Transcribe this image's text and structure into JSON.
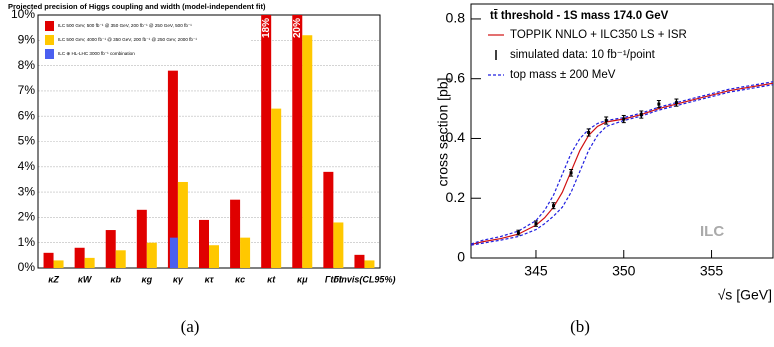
{
  "chart_data": [
    {
      "type": "bar",
      "title": "Projected precision of Higgs coupling and width (model-independent fit)",
      "caption": "(a)",
      "categories": [
        "κZ",
        "κW",
        "κb",
        "κg",
        "κγ",
        "κτ",
        "κc",
        "κt",
        "κμ",
        "Γtot",
        "Γinvis(CL95%)"
      ],
      "series": [
        {
          "name": "ILC 500 GeV,  500 fb⁻¹ @ 350 GeV, 200 fb⁻¹ @ 250 GeV,  500 fb⁻¹",
          "color": "#e00000",
          "values": [
            0.6,
            0.8,
            1.5,
            2.3,
            7.8,
            1.9,
            2.7,
            18,
            20,
            3.8,
            0.52
          ],
          "value_labels": [
            null,
            null,
            null,
            null,
            null,
            null,
            null,
            "18%",
            "20%",
            null,
            null
          ]
        },
        {
          "name": "ILC 500 GeV, 4000 fb⁻¹ @ 350 GeV, 200 fb⁻¹ @ 250 GeV, 2000 fb⁻¹",
          "color": "#ffc800",
          "values": [
            0.3,
            0.4,
            0.7,
            1.0,
            3.4,
            0.9,
            1.2,
            6.3,
            9.2,
            1.8,
            0.3
          ]
        },
        {
          "name": "ILC ⊕ HL-LHC 3000 fb⁻¹ combination",
          "color": "#4a5ff0",
          "values": [
            null,
            null,
            null,
            null,
            1.2,
            null,
            null,
            null,
            null,
            null,
            null
          ]
        }
      ],
      "ylim": [
        0,
        10
      ],
      "yticks": [
        {
          "value": 0,
          "label": "0%"
        },
        {
          "value": 1,
          "label": "1%"
        },
        {
          "value": 2,
          "label": "2%"
        },
        {
          "value": 3,
          "label": "3%"
        },
        {
          "value": 4,
          "label": "4%"
        },
        {
          "value": 5,
          "label": "5%"
        },
        {
          "value": 6,
          "label": "6%"
        },
        {
          "value": 7,
          "label": "7%"
        },
        {
          "value": 8,
          "label": "8%"
        },
        {
          "value": 9,
          "label": "9%"
        },
        {
          "value": 10,
          "label": "10%"
        }
      ],
      "grid": true
    },
    {
      "type": "line",
      "title": "tt̄ threshold - 1S mass 174.0 GeV",
      "caption": "(b)",
      "x_label": "√s [GeV]",
      "y_label": "cross section [pb]",
      "annotation": "ILC",
      "x": [
        341.3,
        342,
        343,
        344,
        345,
        345.5,
        346,
        346.5,
        347,
        347.5,
        348,
        348.5,
        349,
        350,
        351,
        352,
        354,
        356,
        358.5
      ],
      "series": [
        {
          "name": "TOPPIK NNLO + ILC350 LS + ISR",
          "color": "#d01010",
          "style": "solid",
          "values": [
            0.045,
            0.055,
            0.065,
            0.08,
            0.11,
            0.135,
            0.17,
            0.22,
            0.29,
            0.36,
            0.41,
            0.44,
            0.455,
            0.465,
            0.48,
            0.5,
            0.53,
            0.56,
            0.585
          ]
        },
        {
          "name": "top mass ± 200 MeV",
          "color": "#2020e0",
          "style": "dashed",
          "values": [
            0.047,
            0.06,
            0.072,
            0.09,
            0.125,
            0.16,
            0.21,
            0.28,
            0.35,
            0.4,
            0.43,
            0.45,
            0.46,
            0.47,
            0.485,
            0.505,
            0.535,
            0.565,
            0.59
          ],
          "values_other": [
            0.043,
            0.05,
            0.06,
            0.072,
            0.095,
            0.115,
            0.14,
            0.17,
            0.22,
            0.29,
            0.36,
            0.41,
            0.44,
            0.46,
            0.475,
            0.495,
            0.525,
            0.555,
            0.58
          ]
        }
      ],
      "points": {
        "name": "simulated data: 10 fb⁻¹/point",
        "color": "#000000",
        "x": [
          344,
          345,
          346,
          347,
          348,
          349,
          350,
          351,
          352,
          353
        ],
        "values": [
          0.085,
          0.115,
          0.175,
          0.285,
          0.42,
          0.46,
          0.465,
          0.48,
          0.515,
          0.52
        ],
        "errors": [
          0.008,
          0.009,
          0.01,
          0.011,
          0.012,
          0.012,
          0.012,
          0.012,
          0.012,
          0.012
        ]
      },
      "xlim": [
        341.3,
        358.5
      ],
      "xticks": [
        345,
        350,
        355
      ],
      "ylim": [
        0,
        0.85
      ],
      "yticks": [
        0,
        0.2,
        0.4,
        0.6,
        0.8
      ]
    }
  ]
}
